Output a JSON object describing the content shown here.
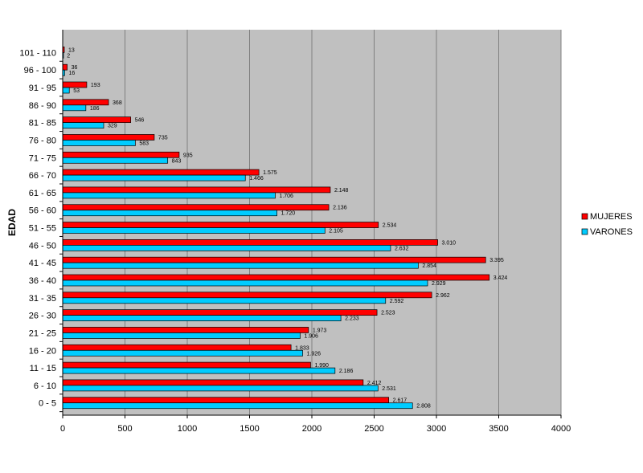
{
  "chart_data": {
    "type": "bar",
    "orientation": "horizontal",
    "title": "",
    "xlabel": "",
    "ylabel": "EDAD",
    "xlim": [
      0,
      4000
    ],
    "x_ticks": [
      "0",
      "500",
      "1000",
      "1500",
      "2000",
      "2500",
      "3000",
      "3500",
      "4000"
    ],
    "grid": "vertical",
    "legend_position": "right",
    "categories": [
      "0 - 5",
      "6 - 10",
      "11 - 15",
      "16 - 20",
      "21 - 25",
      "26 - 30",
      "31 - 35",
      "36 - 40",
      "41 - 45",
      "46 - 50",
      "51 - 55",
      "56 - 60",
      "61 - 65",
      "66 - 70",
      "71 - 75",
      "76 - 80",
      "81 - 85",
      "86 - 90",
      "91 - 95",
      "96 - 100",
      "101 - 110"
    ],
    "series": [
      {
        "name": "MUJERES",
        "color": "#ff0000",
        "values": [
          2617,
          2412,
          1990,
          1833,
          1973,
          2523,
          2962,
          3424,
          3395,
          3010,
          2534,
          2136,
          2148,
          1575,
          935,
          735,
          546,
          368,
          193,
          36,
          13
        ],
        "labels": [
          "2.617",
          "2.412",
          "1.990",
          "1.833",
          "1.973",
          "2.523",
          "2.962",
          "3.424",
          "3.395",
          "3.010",
          "2.534",
          "2.136",
          "2.148",
          "1.575",
          "935",
          "735",
          "546",
          "368",
          "193",
          "36",
          "13"
        ]
      },
      {
        "name": "VARONES",
        "color": "#00ccff",
        "values": [
          2808,
          2531,
          2186,
          1926,
          1906,
          2233,
          2592,
          2929,
          2854,
          2632,
          2105,
          1720,
          1706,
          1466,
          843,
          583,
          329,
          186,
          53,
          16,
          2
        ],
        "labels": [
          "2.808",
          "2.531",
          "2.186",
          "1.926",
          "1.906",
          "2.233",
          "2.592",
          "2.929",
          "2.854",
          "2.632",
          "2.105",
          "1.720",
          "1.706",
          "1.466",
          "843",
          "583",
          "329",
          "186",
          "53",
          "16",
          "2"
        ]
      }
    ]
  }
}
